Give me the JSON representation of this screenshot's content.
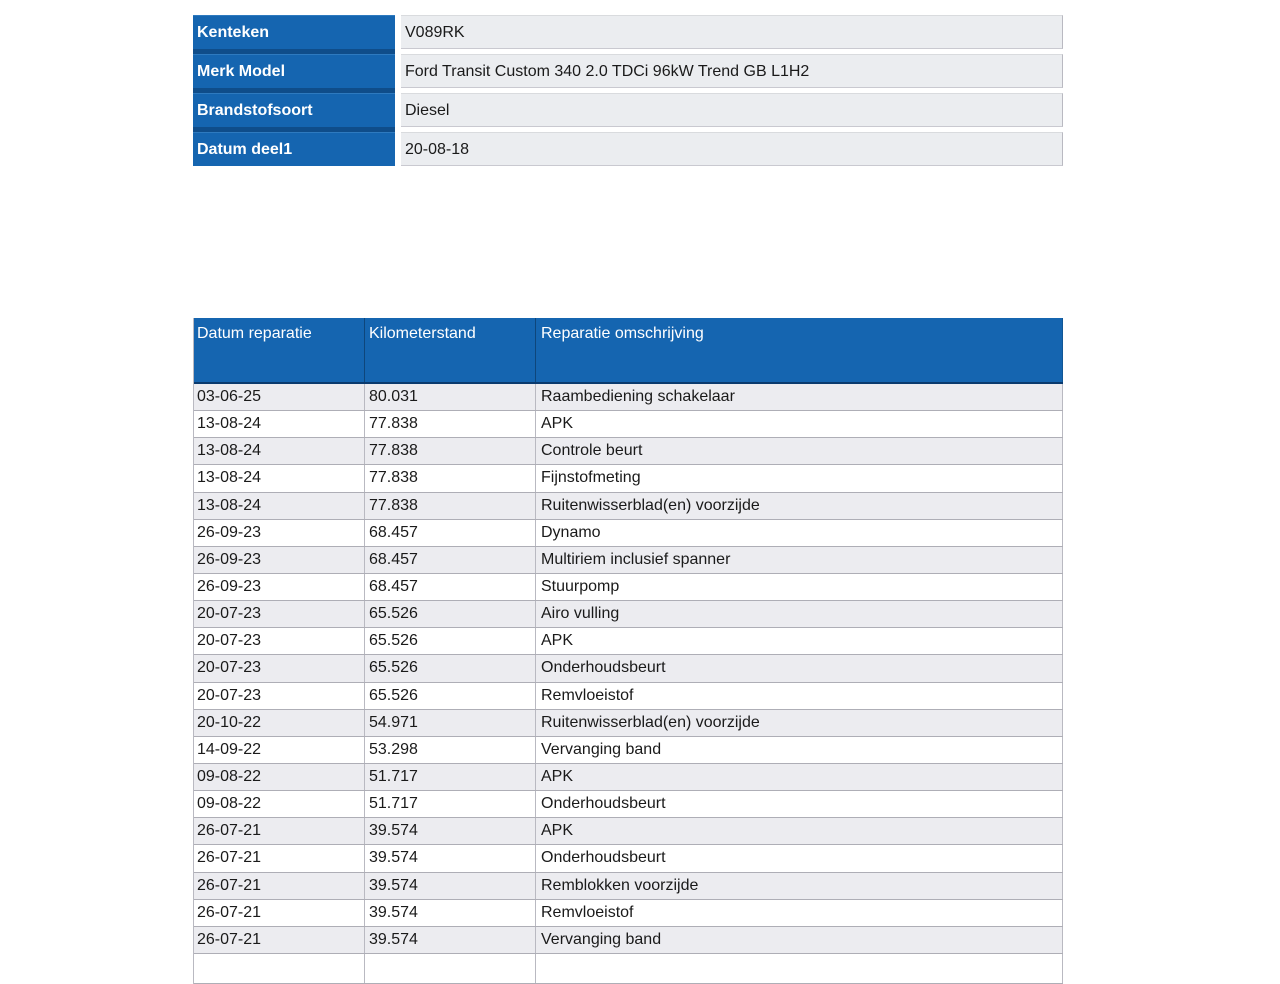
{
  "colors": {
    "accent_blue": "#1565b0",
    "blue_divider_dark": "#0f4d8a",
    "header_border_dark": "#0a3a6e",
    "value_cell_bg": "#ebedf0",
    "stripe_row_bg": "#ececf0",
    "border_gray": "#b9b9c1",
    "text": "#1a1a1a",
    "header_text": "#ffffff"
  },
  "vehicle_info": {
    "rows": [
      {
        "label": "Kenteken",
        "value": "V089RK"
      },
      {
        "label": "Merk Model",
        "value": "Ford Transit Custom 340 2.0 TDCi 96kW Trend GB L1H2"
      },
      {
        "label": "Brandstofsoort",
        "value": "Diesel"
      },
      {
        "label": "Datum deel1",
        "value": "20-08-18"
      }
    ]
  },
  "repairs_table": {
    "columns": [
      "Datum reparatie",
      "Kilometerstand",
      "Reparatie omschrijving"
    ],
    "rows": [
      {
        "date": "03-06-25",
        "km": "80.031",
        "description": "Raambediening schakelaar"
      },
      {
        "date": "13-08-24",
        "km": "77.838",
        "description": "APK"
      },
      {
        "date": "13-08-24",
        "km": "77.838",
        "description": "Controle beurt"
      },
      {
        "date": "13-08-24",
        "km": "77.838",
        "description": "Fijnstofmeting"
      },
      {
        "date": "13-08-24",
        "km": "77.838",
        "description": "Ruitenwisserblad(en) voorzijde"
      },
      {
        "date": "26-09-23",
        "km": "68.457",
        "description": "Dynamo"
      },
      {
        "date": "26-09-23",
        "km": "68.457",
        "description": "Multiriem inclusief spanner"
      },
      {
        "date": "26-09-23",
        "km": "68.457",
        "description": "Stuurpomp"
      },
      {
        "date": "20-07-23",
        "km": "65.526",
        "description": "Airo vulling"
      },
      {
        "date": "20-07-23",
        "km": "65.526",
        "description": "APK"
      },
      {
        "date": "20-07-23",
        "km": "65.526",
        "description": "Onderhoudsbeurt"
      },
      {
        "date": "20-07-23",
        "km": "65.526",
        "description": "Remvloeistof"
      },
      {
        "date": "20-10-22",
        "km": "54.971",
        "description": "Ruitenwisserblad(en) voorzijde"
      },
      {
        "date": "14-09-22",
        "km": "53.298",
        "description": "Vervanging band"
      },
      {
        "date": "09-08-22",
        "km": "51.717",
        "description": "APK"
      },
      {
        "date": "09-08-22",
        "km": "51.717",
        "description": "Onderhoudsbeurt"
      },
      {
        "date": "26-07-21",
        "km": "39.574",
        "description": "APK"
      },
      {
        "date": "26-07-21",
        "km": "39.574",
        "description": "Onderhoudsbeurt"
      },
      {
        "date": "26-07-21",
        "km": "39.574",
        "description": "Remblokken voorzijde"
      },
      {
        "date": "26-07-21",
        "km": "39.574",
        "description": "Remvloeistof"
      },
      {
        "date": "26-07-21",
        "km": "39.574",
        "description": "Vervanging band"
      }
    ],
    "has_trailing_empty_row": true
  }
}
